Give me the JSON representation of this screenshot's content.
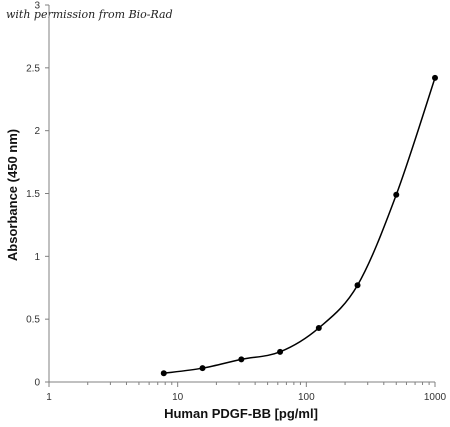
{
  "credit_note": "with permission from Bio-Rad",
  "chart_data": {
    "type": "line",
    "xlabel": "Human PDGF-BB [pg/ml]",
    "ylabel": "Absorbance (450 nm)",
    "xscale": "log",
    "xlim": [
      1,
      1000
    ],
    "ylim": [
      0,
      3
    ],
    "xticks": [
      1,
      10,
      100,
      1000
    ],
    "xtick_labels": [
      "1",
      "10",
      "100",
      "1000"
    ],
    "yticks": [
      0,
      0.5,
      1,
      1.5,
      2,
      2.5,
      3
    ],
    "ytick_labels": [
      "0",
      "0.5",
      "1",
      "1.5",
      "2",
      "2.5",
      "3"
    ],
    "grid": false,
    "legend": "none",
    "series": [
      {
        "x": [
          7.8,
          15.6,
          31.25,
          62.5,
          125,
          250,
          500,
          1000
        ],
        "y": [
          0.07,
          0.11,
          0.18,
          0.24,
          0.43,
          0.77,
          1.49,
          2.42
        ],
        "color": "#000000",
        "marker": "circle",
        "smooth": true
      }
    ]
  }
}
